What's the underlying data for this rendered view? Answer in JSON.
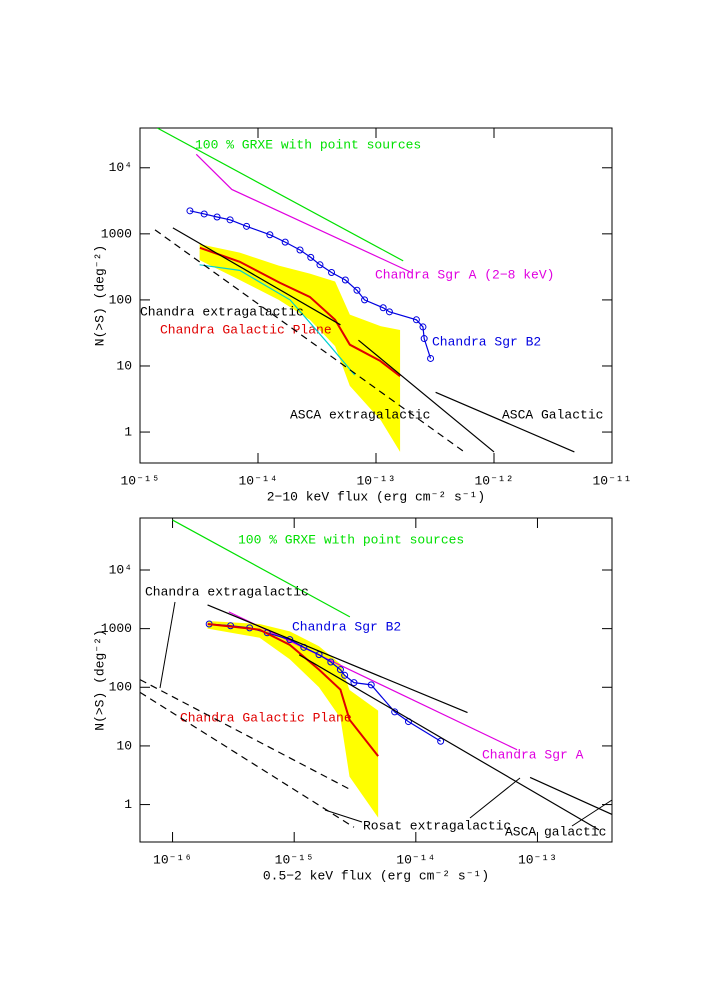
{
  "chart_data": [
    {
      "type": "line",
      "xlog": true,
      "ylog": true,
      "x_label": "2−10 keV flux (erg cm⁻² s⁻¹)",
      "y_label": "N(>S) (deg⁻²)",
      "xlim": [
        1e-15,
        1e-11
      ],
      "ylim": [
        0.34,
        40000
      ],
      "xticks": [
        {
          "value": 1e-15,
          "label": "10⁻¹⁵"
        },
        {
          "value": 1e-14,
          "label": "10⁻¹⁴"
        },
        {
          "value": 1e-13,
          "label": "10⁻¹³"
        },
        {
          "value": 1e-12,
          "label": "10⁻¹²"
        },
        {
          "value": 1e-11,
          "label": "10⁻¹¹"
        }
      ],
      "yticks": [
        1,
        10,
        100,
        1000,
        {
          "value": 10000,
          "label": "10⁴"
        }
      ],
      "series": [
        {
          "style": "area",
          "color": "#ffff00",
          "x": [
            3.2e-15,
            7e-15,
            1.5e-14,
            2.75e-14,
            4.5e-14,
            6e-14,
            1.1e-13,
            1.6e-13
          ],
          "values": [
            700,
            520,
            330,
            250,
            190,
            60,
            40,
            35
          ],
          "lower": [
            400,
            200,
            100,
            50,
            20,
            5,
            1.5,
            0.5
          ]
        },
        {
          "name": "100 % GRXE with point sources",
          "style": "line",
          "color": "#00e000",
          "x": [
            1.4e-15,
            1.7e-13
          ],
          "values": [
            40000,
            390
          ]
        },
        {
          "name": "Chandra Sgr A (2−8 keV)",
          "style": "line",
          "color": "#e000e0",
          "x": [
            3e-15,
            6e-15,
            2e-13
          ],
          "values": [
            16000,
            4700,
            260
          ]
        },
        {
          "name": "Chandra Sgr B2",
          "style": "points",
          "color": "#0000e0",
          "x": [
            2.65e-15,
            3.5e-15,
            4.5e-15,
            5.8e-15,
            8e-15,
            1.26e-14,
            1.7e-14,
            2.27e-14,
            2.8e-14,
            3.35e-14,
            4.2e-14,
            5.5e-14,
            6.9e-14,
            8e-14,
            1.15e-13,
            1.3e-13,
            2.2e-13,
            2.5e-13,
            2.56e-13,
            2.9e-13
          ],
          "values": [
            2230,
            2000,
            1800,
            1630,
            1300,
            970,
            750,
            570,
            440,
            340,
            260,
            200,
            140,
            100,
            76,
            66,
            50,
            39,
            26,
            13
          ]
        },
        {
          "name": "Chandra Galactic Plane",
          "style": "line",
          "color": "#e00000",
          "x": [
            3.22e-15,
            7e-15,
            1.53e-14,
            2.75e-14,
            4.5e-14,
            6e-14,
            1.08e-13,
            1.6e-13
          ],
          "values": [
            614,
            378,
            182,
            111,
            50,
            21,
            12,
            7
          ]
        },
        {
          "style": "line",
          "color": "#00d0d0",
          "x": [
            3.2e-15,
            7e-15,
            1.87e-14,
            4e-14,
            6.6e-14
          ],
          "values": [
            340,
            280,
            100,
            21,
            7.3
          ]
        },
        {
          "style": "dashed",
          "color": "#000000",
          "x": [
            1.34e-15,
            5.6e-13
          ],
          "values": [
            1150,
            0.5
          ]
        },
        {
          "name": "Chandra extragalactic",
          "style": "line",
          "color": "#000000",
          "x": [
            1.9e-15,
            5e-14
          ],
          "values": [
            1230,
            42
          ]
        },
        {
          "name": "ASCA extragalactic",
          "style": "line",
          "color": "#000000",
          "x": [
            7.1e-14,
            1e-12
          ],
          "values": [
            24.6,
            0.5
          ]
        },
        {
          "name": "ASCA Galactic",
          "style": "line",
          "color": "#000000",
          "x": [
            3.2e-13,
            4.8e-12
          ],
          "values": [
            4,
            0.5
          ]
        }
      ]
    },
    {
      "type": "line",
      "xlog": true,
      "ylog": true,
      "x_label": "0.5−2 keV flux (erg cm⁻² s⁻¹)",
      "y_label": "N(>S) (deg⁻²)",
      "xlim": [
        5.4e-17,
        4.1e-13
      ],
      "ylim": [
        0.23,
        77000
      ],
      "xticks": [
        {
          "value": 1e-16,
          "label": "10⁻¹⁶"
        },
        {
          "value": 1e-15,
          "label": "10⁻¹⁵"
        },
        {
          "value": 1e-14,
          "label": "10⁻¹⁴"
        },
        {
          "value": 1e-13,
          "label": "10⁻¹³"
        }
      ],
      "yticks": [
        1,
        10,
        100,
        1000,
        {
          "value": 10000,
          "label": "10⁴"
        }
      ],
      "series": [
        {
          "style": "area",
          "color": "#ffff00",
          "x": [
            1.94e-16,
            5.2e-16,
            9.2e-16,
            1.6e-15,
            2.4e-15,
            2.85e-15,
            4.9e-15
          ],
          "values": [
            1350,
            1200,
            900,
            500,
            250,
            90,
            40
          ],
          "lower": [
            1000,
            700,
            300,
            100,
            30,
            3,
            0.6
          ]
        },
        {
          "name": "100 % GRXE with point sources",
          "style": "line",
          "color": "#00e000",
          "x": [
            1e-16,
            2.87e-15
          ],
          "values": [
            71000,
            1585
          ]
        },
        {
          "name": "Chandra Sgr A",
          "style": "line",
          "color": "#e000e0",
          "x": [
            2.9e-16,
            6.8e-14
          ],
          "values": [
            1930,
            8.6
          ]
        },
        {
          "name": "Chandra Sgr B2",
          "style": "points",
          "color": "#0000e0",
          "x": [
            2e-16,
            3e-16,
            4.3e-16,
            6e-16,
            9.2e-16,
            1.2e-15,
            1.6e-15,
            2e-15,
            2.4e-15,
            2.6e-15,
            3.1e-15,
            4.3e-15,
            6.7e-15,
            8.7e-15,
            1.6e-14
          ],
          "values": [
            1200,
            1120,
            1030,
            850,
            650,
            480,
            360,
            270,
            200,
            160,
            120,
            110,
            38,
            26,
            12
          ]
        },
        {
          "name": "Chandra Galactic Plane",
          "style": "line",
          "color": "#e00000",
          "x": [
            1.94e-16,
            5.2e-16,
            9.2e-16,
            1.6e-15,
            2.4e-15,
            2.85e-15,
            4.9e-15
          ],
          "values": [
            1200,
            960,
            530,
            200,
            91,
            28,
            6.7
          ]
        },
        {
          "name": "Chandra extragalactic",
          "style": "dashed",
          "color": "#000000",
          "x": [
            5.4e-17,
            2.9e-15
          ],
          "values": [
            135,
            1.8
          ]
        },
        {
          "style": "dashed",
          "color": "#000000",
          "x": [
            5.4e-17,
            3.1e-15
          ],
          "values": [
            82,
            0.41
          ]
        },
        {
          "style": "line",
          "color": "#000000",
          "x": [
            1.94e-16,
            2.66e-14
          ],
          "values": [
            2540,
            37
          ]
        },
        {
          "name": "Rosat extragalactic",
          "style": "line",
          "color": "#000000",
          "x": [
            1.1e-15,
            3.2e-13
          ],
          "values": [
            358,
            0.37
          ]
        },
        {
          "name": "ASCA galactic",
          "style": "line",
          "color": "#000000",
          "x": [
            8.7e-14,
            4.1e-13
          ],
          "values": [
            2.9,
            0.68
          ]
        }
      ]
    }
  ]
}
